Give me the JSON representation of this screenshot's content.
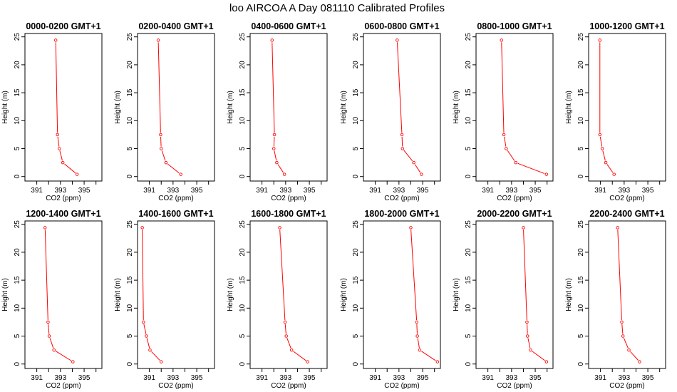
{
  "page": {
    "title": "loo AIRCOA A  Day 081110  Calibrated Profiles"
  },
  "style": {
    "line_color": "#ff0000",
    "marker_color": "#ff0000",
    "axis_color": "#000000"
  },
  "chart_data": [
    {
      "type": "line",
      "title": "0000-0200 GMT+1",
      "xlabel": "CO2 (ppm)",
      "ylabel": "Height (m)",
      "xlim": [
        390,
        396.5
      ],
      "ylim": [
        -0.8,
        25.6
      ],
      "xticks": [
        391,
        393,
        395
      ],
      "xticks_minor": [
        392,
        394,
        396
      ],
      "yticks": [
        0,
        5,
        10,
        15,
        20,
        25
      ],
      "grid": false,
      "legend": false,
      "series": [
        {
          "x": [
            392.6,
            392.75,
            392.9,
            393.2,
            394.4
          ],
          "y": [
            24.4,
            7.5,
            5,
            2.5,
            0.4
          ]
        }
      ]
    },
    {
      "type": "line",
      "title": "0200-0400 GMT+1",
      "xlabel": "CO2 (ppm)",
      "ylabel": "Height (m)",
      "xlim": [
        390,
        396.5
      ],
      "ylim": [
        -0.8,
        25.6
      ],
      "xticks": [
        391,
        393,
        395
      ],
      "xticks_minor": [
        392,
        394,
        396
      ],
      "yticks": [
        0,
        5,
        10,
        15,
        20,
        25
      ],
      "grid": false,
      "legend": false,
      "series": [
        {
          "x": [
            391.75,
            391.95,
            392.0,
            392.4,
            393.65
          ],
          "y": [
            24.4,
            7.5,
            5,
            2.5,
            0.4
          ]
        }
      ]
    },
    {
      "type": "line",
      "title": "0400-0600 GMT+1",
      "xlabel": "CO2 (ppm)",
      "ylabel": "Height (m)",
      "xlim": [
        390,
        396.5
      ],
      "ylim": [
        -0.8,
        25.6
      ],
      "xticks": [
        391,
        393,
        395
      ],
      "xticks_minor": [
        392,
        394,
        396
      ],
      "yticks": [
        0,
        5,
        10,
        15,
        20,
        25
      ],
      "grid": false,
      "legend": false,
      "series": [
        {
          "x": [
            391.85,
            392.05,
            392.0,
            392.25,
            392.9
          ],
          "y": [
            24.4,
            7.5,
            5,
            2.5,
            0.4
          ]
        }
      ]
    },
    {
      "type": "line",
      "title": "0600-0800 GMT+1",
      "xlabel": "CO2 (ppm)",
      "ylabel": "Height (m)",
      "xlim": [
        390,
        396.5
      ],
      "ylim": [
        -0.8,
        25.6
      ],
      "xticks": [
        391,
        393,
        395
      ],
      "xticks_minor": [
        392,
        394,
        396
      ],
      "yticks": [
        0,
        5,
        10,
        15,
        20,
        25
      ],
      "grid": false,
      "legend": false,
      "series": [
        {
          "x": [
            392.85,
            393.25,
            393.3,
            394.25,
            394.9
          ],
          "y": [
            24.4,
            7.5,
            5,
            2.5,
            0.4
          ]
        }
      ]
    },
    {
      "type": "line",
      "title": "0800-1000 GMT+1",
      "xlabel": "CO2 (ppm)",
      "ylabel": "Height (m)",
      "xlim": [
        390,
        396.5
      ],
      "ylim": [
        -0.8,
        25.6
      ],
      "xticks": [
        391,
        393,
        395
      ],
      "xticks_minor": [
        392,
        394,
        396
      ],
      "yticks": [
        0,
        5,
        10,
        15,
        20,
        25
      ],
      "grid": false,
      "legend": false,
      "series": [
        {
          "x": [
            392.15,
            392.35,
            392.55,
            393.35,
            395.95
          ],
          "y": [
            24.4,
            7.5,
            5,
            2.5,
            0.4
          ]
        }
      ]
    },
    {
      "type": "line",
      "title": "1000-1200 GMT+1",
      "xlabel": "CO2 (ppm)",
      "ylabel": "Height (m)",
      "xlim": [
        390,
        396.5
      ],
      "ylim": [
        -0.8,
        25.6
      ],
      "xticks": [
        391,
        393,
        395
      ],
      "xticks_minor": [
        392,
        394,
        396
      ],
      "yticks": [
        0,
        5,
        10,
        15,
        20,
        25
      ],
      "grid": false,
      "legend": false,
      "series": [
        {
          "x": [
            390.95,
            390.95,
            391.15,
            391.45,
            392.15
          ],
          "y": [
            24.4,
            7.5,
            5,
            2.5,
            0.4
          ]
        }
      ]
    },
    {
      "type": "line",
      "title": "1200-1400 GMT+1",
      "xlabel": "CO2 (ppm)",
      "ylabel": "Height (m)",
      "xlim": [
        390,
        396.5
      ],
      "ylim": [
        -0.8,
        25.6
      ],
      "xticks": [
        391,
        393,
        395
      ],
      "xticks_minor": [
        392,
        394,
        396
      ],
      "yticks": [
        0,
        5,
        10,
        15,
        20,
        25
      ],
      "grid": false,
      "legend": false,
      "series": [
        {
          "x": [
            391.7,
            391.95,
            392.05,
            392.45,
            394.05
          ],
          "y": [
            24.4,
            7.5,
            5,
            2.5,
            0.4
          ]
        }
      ]
    },
    {
      "type": "line",
      "title": "1400-1600 GMT+1",
      "xlabel": "CO2 (ppm)",
      "ylabel": "Height (m)",
      "xlim": [
        390,
        396.5
      ],
      "ylim": [
        -0.8,
        25.6
      ],
      "xticks": [
        391,
        393,
        395
      ],
      "xticks_minor": [
        392,
        394,
        396
      ],
      "yticks": [
        0,
        5,
        10,
        15,
        20,
        25
      ],
      "grid": false,
      "legend": false,
      "series": [
        {
          "x": [
            390.4,
            390.5,
            390.75,
            391.05,
            392.0
          ],
          "y": [
            24.4,
            7.5,
            5,
            2.5,
            0.4
          ]
        }
      ]
    },
    {
      "type": "line",
      "title": "1600-1800 GMT+1",
      "xlabel": "CO2 (ppm)",
      "ylabel": "Height (m)",
      "xlim": [
        390,
        396.5
      ],
      "ylim": [
        -0.8,
        25.6
      ],
      "xticks": [
        391,
        393,
        395
      ],
      "xticks_minor": [
        392,
        394,
        396
      ],
      "yticks": [
        0,
        5,
        10,
        15,
        20,
        25
      ],
      "grid": false,
      "legend": false,
      "series": [
        {
          "x": [
            392.5,
            392.95,
            393.05,
            393.5,
            394.85
          ],
          "y": [
            24.4,
            7.5,
            5,
            2.5,
            0.4
          ]
        }
      ]
    },
    {
      "type": "line",
      "title": "1800-2000 GMT+1",
      "xlabel": "CO2 (ppm)",
      "ylabel": "Height (m)",
      "xlim": [
        390,
        396.5
      ],
      "ylim": [
        -0.8,
        25.6
      ],
      "xticks": [
        391,
        393,
        395
      ],
      "xticks_minor": [
        392,
        394,
        396
      ],
      "yticks": [
        0,
        5,
        10,
        15,
        20,
        25
      ],
      "grid": false,
      "legend": false,
      "series": [
        {
          "x": [
            394.0,
            394.5,
            394.55,
            394.75,
            396.25
          ],
          "y": [
            24.4,
            7.5,
            5,
            2.5,
            0.4
          ]
        }
      ]
    },
    {
      "type": "line",
      "title": "2000-2200 GMT+1",
      "xlabel": "CO2 (ppm)",
      "ylabel": "Height (m)",
      "xlim": [
        390,
        396.5
      ],
      "ylim": [
        -0.8,
        25.6
      ],
      "xticks": [
        391,
        393,
        395
      ],
      "xticks_minor": [
        392,
        394,
        396
      ],
      "yticks": [
        0,
        5,
        10,
        15,
        20,
        25
      ],
      "grid": false,
      "legend": false,
      "series": [
        {
          "x": [
            394.0,
            394.3,
            394.35,
            394.6,
            395.95
          ],
          "y": [
            24.4,
            7.5,
            5,
            2.5,
            0.4
          ]
        }
      ]
    },
    {
      "type": "line",
      "title": "2200-2400 GMT+1",
      "xlabel": "CO2 (ppm)",
      "ylabel": "Height (m)",
      "xlim": [
        390,
        396.5
      ],
      "ylim": [
        -0.8,
        25.6
      ],
      "xticks": [
        391,
        393,
        395
      ],
      "xticks_minor": [
        392,
        394,
        396
      ],
      "yticks": [
        0,
        5,
        10,
        15,
        20,
        25
      ],
      "grid": false,
      "legend": false,
      "series": [
        {
          "x": [
            392.45,
            392.8,
            392.9,
            393.4,
            394.3
          ],
          "y": [
            24.4,
            7.5,
            5,
            2.5,
            0.4
          ]
        }
      ]
    }
  ]
}
